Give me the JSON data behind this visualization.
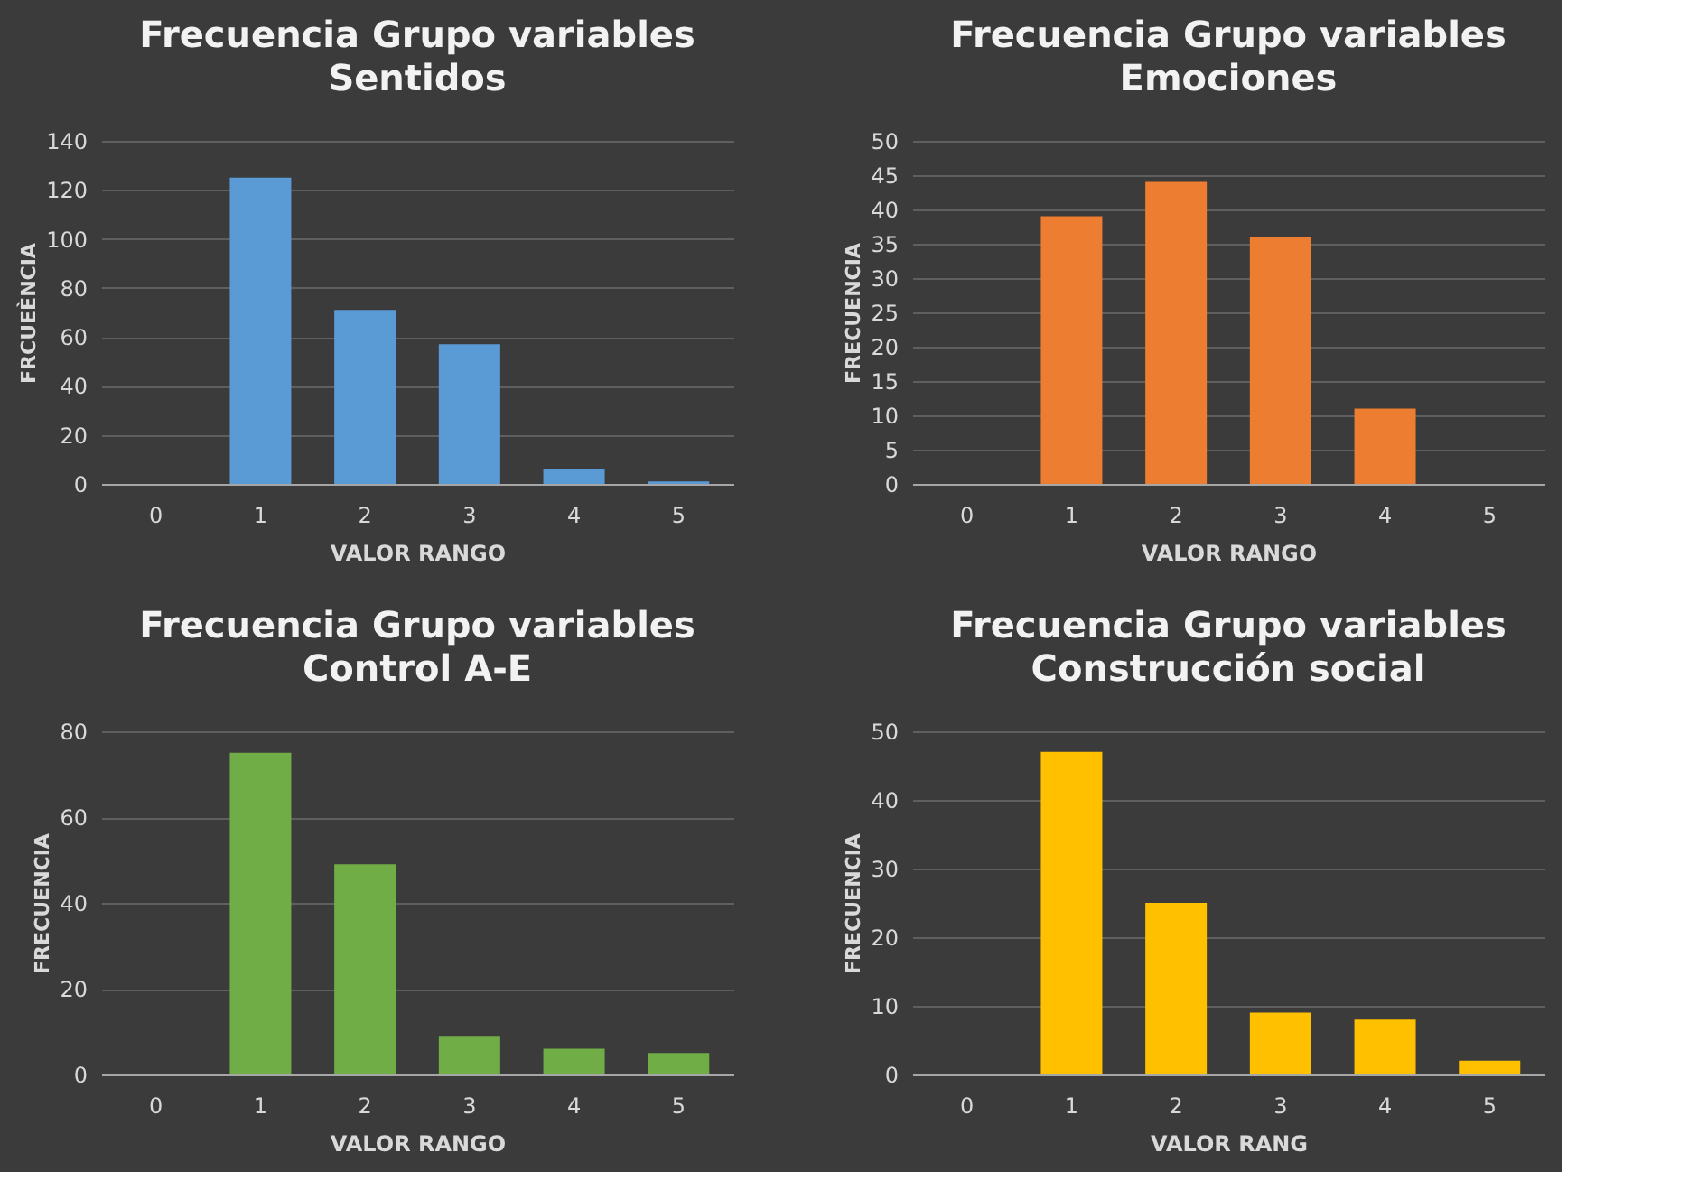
{
  "chart_data": [
    {
      "type": "bar",
      "title": "Frecuencia Grupo variables",
      "subtitle": "Sentidos",
      "xlabel": "VALOR RANGO",
      "ylabel": "FRCUEÈNCIA",
      "categories": [
        "0",
        "1",
        "2",
        "3",
        "4",
        "5"
      ],
      "values": [
        0,
        125,
        71,
        57,
        6,
        1
      ],
      "color": "#5b9bd5",
      "ylim": [
        0,
        140
      ],
      "yticks": [
        0,
        20,
        40,
        60,
        80,
        100,
        120,
        140
      ],
      "grid": "y"
    },
    {
      "type": "bar",
      "title": "Frecuencia Grupo variables",
      "subtitle": "Emociones",
      "xlabel": "VALOR RANGO",
      "ylabel": "FRECUENCIA",
      "categories": [
        "0",
        "1",
        "2",
        "3",
        "4",
        "5"
      ],
      "values": [
        0,
        39,
        44,
        36,
        11,
        0
      ],
      "color": "#ed7d31",
      "ylim": [
        0,
        50
      ],
      "yticks": [
        0,
        5,
        10,
        15,
        20,
        25,
        30,
        35,
        40,
        45,
        50
      ],
      "grid": "y"
    },
    {
      "type": "bar",
      "title": "Frecuencia Grupo variables",
      "subtitle": "Control A-E",
      "xlabel": "VALOR RANGO",
      "ylabel": "FRECUENCIA",
      "categories": [
        "0",
        "1",
        "2",
        "3",
        "4",
        "5"
      ],
      "values": [
        0,
        75,
        49,
        9,
        6,
        5
      ],
      "color": "#70ad47",
      "ylim": [
        0,
        80
      ],
      "yticks": [
        0,
        20,
        40,
        60,
        80
      ],
      "grid": "y"
    },
    {
      "type": "bar",
      "title": "Frecuencia Grupo variables",
      "subtitle": "Construcción social",
      "xlabel": "VALOR RANG",
      "ylabel": "FRECUENCIA",
      "categories": [
        "0",
        "1",
        "2",
        "3",
        "4",
        "5"
      ],
      "values": [
        0,
        47,
        25,
        9,
        8,
        2
      ],
      "color": "#ffc000",
      "ylim": [
        0,
        50
      ],
      "yticks": [
        0,
        10,
        20,
        30,
        40,
        50
      ],
      "grid": "y"
    }
  ]
}
